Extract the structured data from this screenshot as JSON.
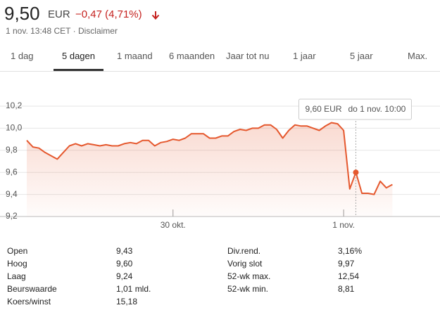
{
  "header": {
    "price": "9,50",
    "currency": "EUR",
    "change": "−0,47 (4,71%)",
    "timestamp": "1 nov. 13:48 CET · Disclaimer"
  },
  "tabs": [
    {
      "label": "1 dag"
    },
    {
      "label": "5 dagen",
      "selected": true
    },
    {
      "label": "1 maand"
    },
    {
      "label": "6 maanden"
    },
    {
      "label": "Jaar tot nu"
    },
    {
      "label": "1 jaar"
    },
    {
      "label": "5 jaar"
    },
    {
      "label": "Max."
    }
  ],
  "chart_data": {
    "type": "line",
    "categories": [
      null,
      null,
      null,
      null,
      null,
      null,
      null,
      null,
      null,
      null,
      null,
      null,
      null,
      null,
      null,
      null,
      null,
      null,
      null,
      null,
      null,
      null,
      null,
      null,
      "30 okt.",
      null,
      null,
      null,
      null,
      null,
      null,
      null,
      null,
      null,
      null,
      null,
      null,
      null,
      null,
      null,
      null,
      null,
      null,
      null,
      null,
      null,
      null,
      null,
      null,
      null,
      null,
      null,
      "1 nov.",
      null,
      null,
      null,
      null,
      null,
      null,
      null,
      null,
      null,
      null,
      null,
      null,
      null,
      null,
      null
    ],
    "series": [
      {
        "color": "#e5582e",
        "values": [
          9.89,
          9.83,
          9.82,
          9.78,
          9.75,
          9.72,
          9.78,
          9.84,
          9.86,
          9.84,
          9.86,
          9.85,
          9.84,
          9.85,
          9.84,
          9.84,
          9.86,
          9.87,
          9.86,
          9.89,
          9.89,
          9.84,
          9.87,
          9.88,
          9.9,
          9.89,
          9.91,
          9.95,
          9.95,
          9.95,
          9.91,
          9.91,
          9.93,
          9.93,
          9.97,
          9.99,
          9.98,
          10.0,
          10.0,
          10.03,
          10.03,
          9.99,
          9.91,
          9.98,
          10.03,
          10.02,
          10.02,
          10.0,
          9.98,
          10.02,
          10.05,
          10.04,
          9.98,
          9.45,
          9.6,
          9.41,
          9.41,
          9.4,
          9.52,
          9.46,
          9.49,
          null,
          null,
          null,
          null,
          null,
          null,
          null
        ]
      }
    ],
    "ylim": [
      9.2,
      10.2
    ],
    "yticks": [
      {
        "value": 9.2,
        "label": "9,2"
      },
      {
        "value": 9.4,
        "label": "9,4"
      },
      {
        "value": 9.6,
        "label": "9,6"
      },
      {
        "value": 9.8,
        "label": "9,8"
      },
      {
        "value": 10.0,
        "label": "10,0"
      },
      {
        "value": 10.2,
        "label": "10,2"
      }
    ],
    "grid": true,
    "tooltip": {
      "value": 9.6,
      "label": "9,60 EUR",
      "time": "do 1 nov. 10:00"
    }
  },
  "stats": {
    "left": [
      [
        "Open",
        "9,43"
      ],
      [
        "Hoog",
        "9,60"
      ],
      [
        "Laag",
        "9,24"
      ],
      [
        "Beurswaarde",
        "1,01 mld."
      ],
      [
        "Koers/winst",
        "15,18"
      ]
    ],
    "right": [
      [
        "Div.rend.",
        "3,16%"
      ],
      [
        "Vorig slot",
        "9,97"
      ],
      [
        "52-wk max.",
        "12,54"
      ],
      [
        "52-wk min.",
        "8,81"
      ]
    ]
  }
}
